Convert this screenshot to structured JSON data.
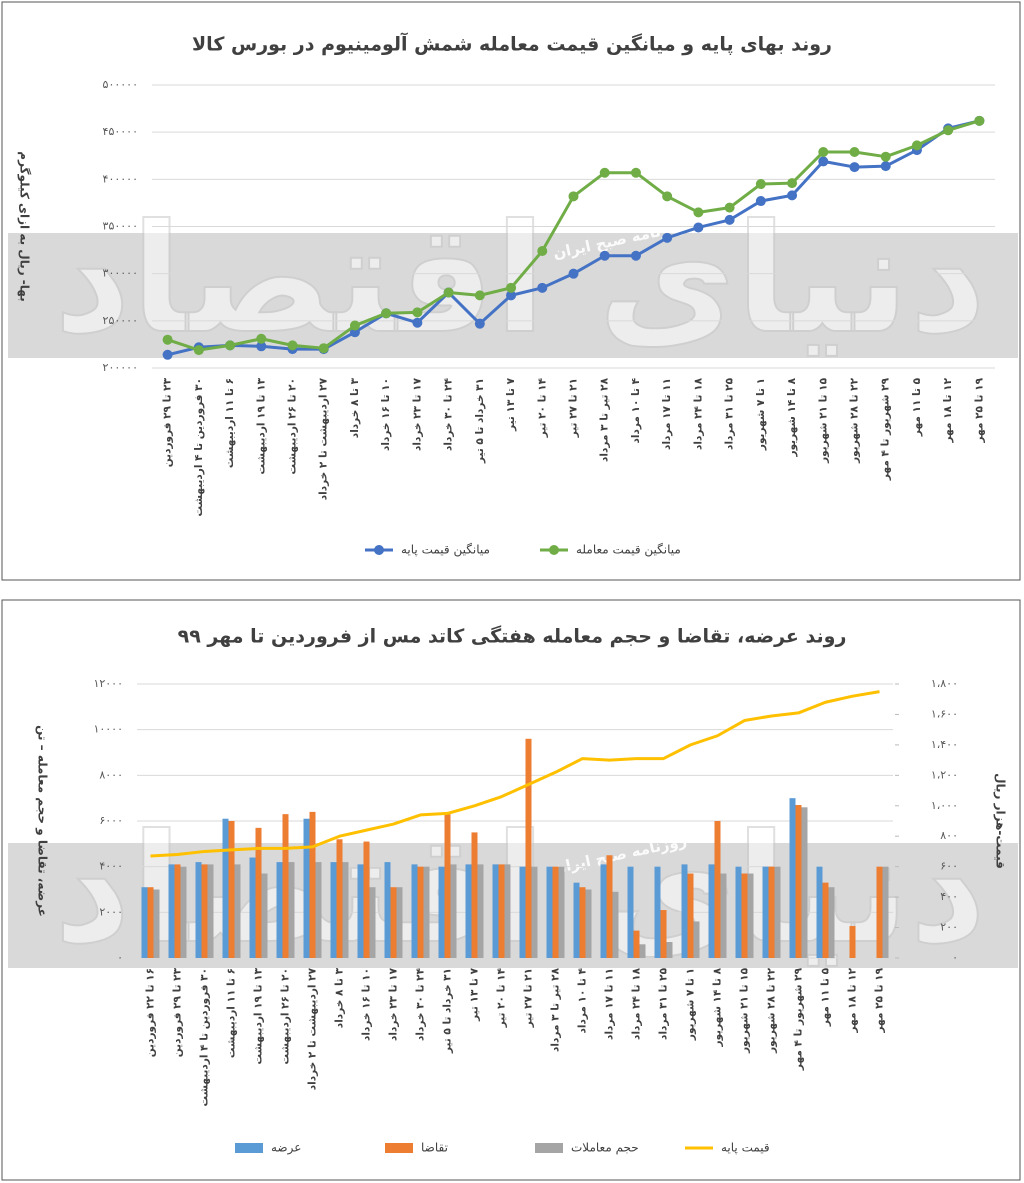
{
  "watermark": {
    "text": "روزنامه صبح ایران",
    "logo": "دنیای اقتصاد"
  },
  "chart_data": [
    {
      "type": "line",
      "title": "روند بهای پایه و میانگین قیمت معامله شمش آلومینیوم در بورس کالا",
      "y_label": "بها- ریال به ازای کیلوگرم",
      "categories": [
        "۲۳ تا ۲۹ فروردین",
        "۳۰ فروردین تا ۴ اردیبهشت",
        "۶ تا ۱۱ اردیبهشت",
        "۱۳ تا ۱۹ اردیبهشت",
        "۲۰ تا ۲۶ اردیبهشت",
        "۲۷ اردیبهشت تا ۲ خرداد",
        "۳ تا ۸ خرداد",
        "۱۰ تا ۱۶ خرداد",
        "۱۷ تا ۲۳ خرداد",
        "۲۴ تا ۳۰ خرداد",
        "۳۱ خرداد تا ۵ تیر",
        "۷ تا ۱۳ تیر",
        "۱۴ تا ۲۰ تیر",
        "۲۱ تا ۲۷ تیر",
        "۲۸ تیر تا ۳ مرداد",
        "۴ تا ۱۰ مرداد",
        "۱۱ تا ۱۷ مرداد",
        "۱۸ تا ۲۴ مرداد",
        "۲۵ تا ۳۱ مرداد",
        "۱ تا ۷ شهریور",
        "۸ تا ۱۴ شهریور",
        "۱۵ تا ۲۱ شهریور",
        "۲۲ تا ۲۸ شهریور",
        "۲۹ شهریور تا ۴ مهر",
        "۵ تا ۱۱ مهر",
        "۱۲ تا ۱۸ مهر",
        "۱۹ تا ۲۵ مهر"
      ],
      "series": [
        {
          "name": "میانگین قیمت پایه",
          "color": "#4472c4",
          "values": [
            214000,
            222000,
            224000,
            223000,
            220000,
            220000,
            238000,
            258000,
            248000,
            280000,
            247000,
            277000,
            285000,
            300000,
            319000,
            319000,
            338000,
            349000,
            357000,
            377000,
            383000,
            419000,
            413000,
            414000,
            431000,
            454000,
            462000
          ]
        },
        {
          "name": "میانگین قیمت معامله",
          "color": "#70ad47",
          "values": [
            230000,
            219000,
            224000,
            231000,
            224000,
            221000,
            245000,
            258000,
            259000,
            280000,
            277000,
            285000,
            324000,
            382000,
            407000,
            407000,
            382000,
            365000,
            370000,
            395000,
            396000,
            429000,
            429000,
            424000,
            436000,
            452000,
            462000
          ]
        }
      ],
      "ylim": [
        200000,
        500000
      ],
      "yticks": [
        {
          "value": 200000,
          "label": "۲۰۰۰۰۰"
        },
        {
          "value": 250000,
          "label": "۲۵۰۰۰۰"
        },
        {
          "value": 300000,
          "label": "۳۰۰۰۰۰"
        },
        {
          "value": 350000,
          "label": "۳۵۰۰۰۰"
        },
        {
          "value": 400000,
          "label": "۴۰۰۰۰۰"
        },
        {
          "value": 450000,
          "label": "۴۵۰۰۰۰"
        },
        {
          "value": 500000,
          "label": "۵۰۰۰۰۰"
        }
      ],
      "grid": true,
      "legend": "bottom"
    },
    {
      "type": "bar",
      "title": "روند عرضه، تقاضا و حجم معامله هفتگی کاتد مس از فروردین تا مهر ۹۹",
      "y_label": "عرضه، تقاضا و حجم معامله – تن",
      "y2_label": "قیمت-هزار ریال",
      "categories": [
        "۱۶ تا ۲۲ فروردین",
        "۲۳ تا ۲۹ فروردین",
        "۳۰ فروردین تا ۴ اردیبهشت",
        "۶ تا ۱۱ اردیبهشت",
        "۱۳ تا ۱۹ اردیبهشت",
        "۲۰ تا ۲۶ اردیبهشت",
        "۲۷ اردیبهشت تا ۲ خرداد",
        "۳ تا ۸ خرداد",
        "۱۰ تا ۱۶ خرداد",
        "۱۷ تا ۲۳ خرداد",
        "۲۴ تا ۳۰ خرداد",
        "۳۱ خرداد تا ۵ تیر",
        "۷ تا ۱۳ تیر",
        "۱۴ تا ۲۰ تیر",
        "۲۱ تا ۲۷ تیر",
        "۲۸ تیر تا ۳ مرداد",
        "۴ تا ۱۰ مرداد",
        "۱۱ تا ۱۷ مرداد",
        "۱۸ تا ۲۴ مرداد",
        "۲۵ تا ۳۱ مرداد",
        "۱ تا ۷ شهریور",
        "۸ تا ۱۴ شهریور",
        "۱۵ تا ۲۱ شهریور",
        "۲۲ تا ۲۸ شهریور",
        "۲۹ شهریور تا ۴ مهر",
        "۵ تا ۱۱ مهر",
        "۱۲ تا ۱۸ مهر",
        "۱۹ تا ۲۵ مهر"
      ],
      "series": [
        {
          "name": "عرضه",
          "color": "#5b9bd5",
          "values": [
            3100,
            4100,
            4200,
            6100,
            4400,
            4200,
            6100,
            4200,
            4100,
            4200,
            4100,
            4000,
            4100,
            4100,
            4000,
            4000,
            3300,
            4100,
            4000,
            4000,
            4100,
            4100,
            4000,
            4000,
            7000,
            4000,
            0,
            0
          ]
        },
        {
          "name": "تقاضا",
          "color": "#ed7d31",
          "values": [
            3100,
            4100,
            4100,
            6000,
            5700,
            6300,
            6400,
            5200,
            5100,
            3100,
            4000,
            6300,
            5500,
            4100,
            9600,
            4000,
            3100,
            4500,
            1200,
            2100,
            3700,
            6000,
            3700,
            4000,
            6700,
            3300,
            1400,
            4000
          ]
        },
        {
          "name": "حجم معاملات",
          "color": "#a5a5a5",
          "values": [
            3000,
            4000,
            4100,
            4100,
            3700,
            4200,
            4200,
            4200,
            3100,
            3100,
            4000,
            4100,
            4100,
            4100,
            4000,
            4000,
            3000,
            2900,
            600,
            700,
            1600,
            3700,
            3700,
            4000,
            6600,
            3100,
            0,
            4000
          ]
        },
        {
          "name": "قیمت پایه",
          "color": "#ffc000",
          "type": "line",
          "axis": "y2",
          "values": [
            670,
            680,
            700,
            710,
            720,
            720,
            730,
            800,
            840,
            880,
            940,
            950,
            1000,
            1060,
            1140,
            1220,
            1310,
            1300,
            1310,
            1310,
            1400,
            1460,
            1560,
            1590,
            1610,
            1680,
            1720,
            1750
          ]
        }
      ],
      "ylim": [
        0,
        12000
      ],
      "yticks": [
        {
          "value": 0,
          "label": "۰"
        },
        {
          "value": 2000,
          "label": "۲۰۰۰"
        },
        {
          "value": 4000,
          "label": "۴۰۰۰"
        },
        {
          "value": 6000,
          "label": "۶۰۰۰"
        },
        {
          "value": 8000,
          "label": "۸۰۰۰"
        },
        {
          "value": 10000,
          "label": "۱۰۰۰۰"
        },
        {
          "value": 12000,
          "label": "۱۲۰۰۰"
        }
      ],
      "y2lim": [
        0,
        1800
      ],
      "y2ticks": [
        {
          "value": 0,
          "label": "۰"
        },
        {
          "value": 200,
          "label": "۲۰۰"
        },
        {
          "value": 400,
          "label": "۴۰۰"
        },
        {
          "value": 600,
          "label": "۶۰۰"
        },
        {
          "value": 800,
          "label": "۸۰۰"
        },
        {
          "value": 1000,
          "label": "۱،۰۰۰"
        },
        {
          "value": 1200,
          "label": "۱،۲۰۰"
        },
        {
          "value": 1400,
          "label": "۱،۴۰۰"
        },
        {
          "value": 1600,
          "label": "۱،۶۰۰"
        },
        {
          "value": 1800,
          "label": "۱،۸۰۰"
        }
      ],
      "grid": true,
      "legend": "bottom"
    }
  ]
}
